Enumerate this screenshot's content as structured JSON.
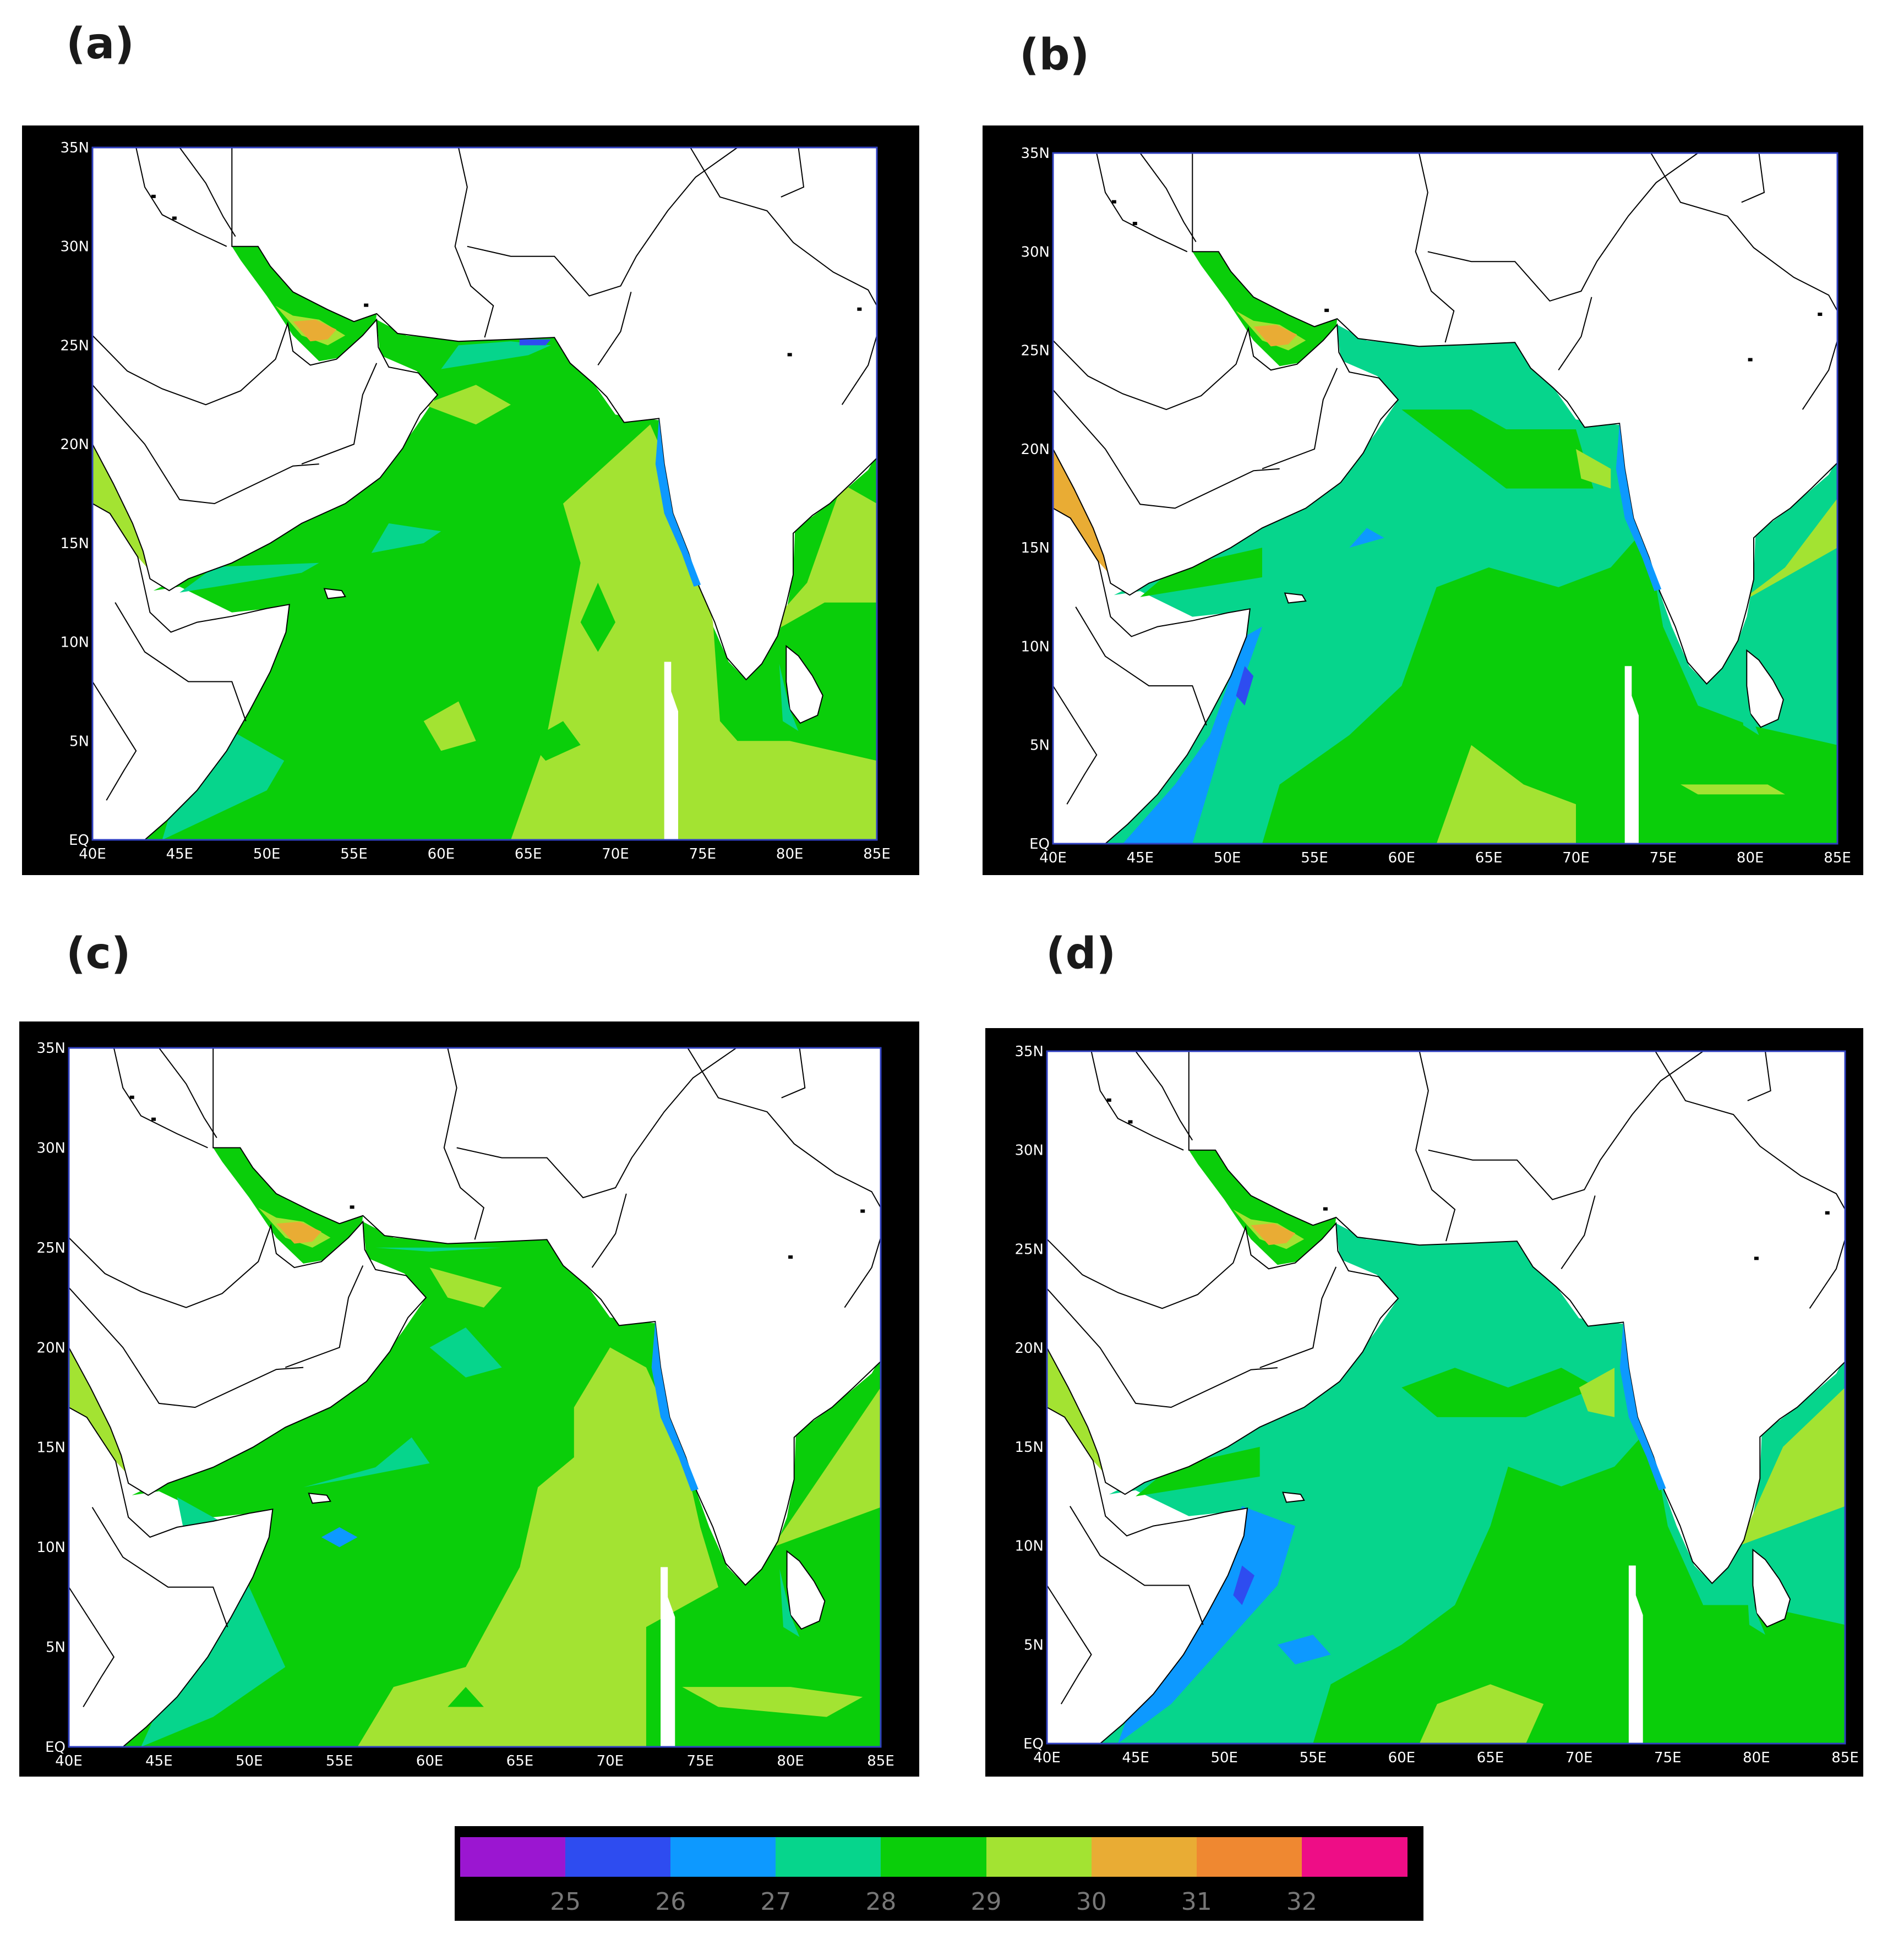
{
  "panels": [
    {
      "label": "(a)",
      "variant": "a"
    },
    {
      "label": "(b)",
      "variant": "b"
    },
    {
      "label": "(c)",
      "variant": "c"
    },
    {
      "label": "(d)",
      "variant": "d"
    }
  ],
  "axes": {
    "lon_ticks": [
      "40E",
      "45E",
      "50E",
      "55E",
      "60E",
      "65E",
      "70E",
      "75E",
      "80E",
      "85E"
    ],
    "lat_ticks": [
      "EQ",
      "5N",
      "10N",
      "15N",
      "20N",
      "25N",
      "30N",
      "35N"
    ]
  },
  "colorbar": {
    "colors": [
      "#9b16d1",
      "#2e4cf0",
      "#0d99ff",
      "#06d58c",
      "#0ace0a",
      "#a3e332",
      "#e9ac34",
      "#ef8831",
      "#ee0d86"
    ],
    "ticks": [
      "25",
      "26",
      "27",
      "28",
      "29",
      "30",
      "31",
      "32"
    ]
  },
  "palette": {
    "c25": "#9b16d1",
    "c26": "#2e4cf0",
    "c27": "#0d99ff",
    "c28": "#06d58c",
    "c29": "#0ace0a",
    "c30": "#a3e332",
    "c31": "#e9ac34",
    "c32": "#ef8831"
  }
}
